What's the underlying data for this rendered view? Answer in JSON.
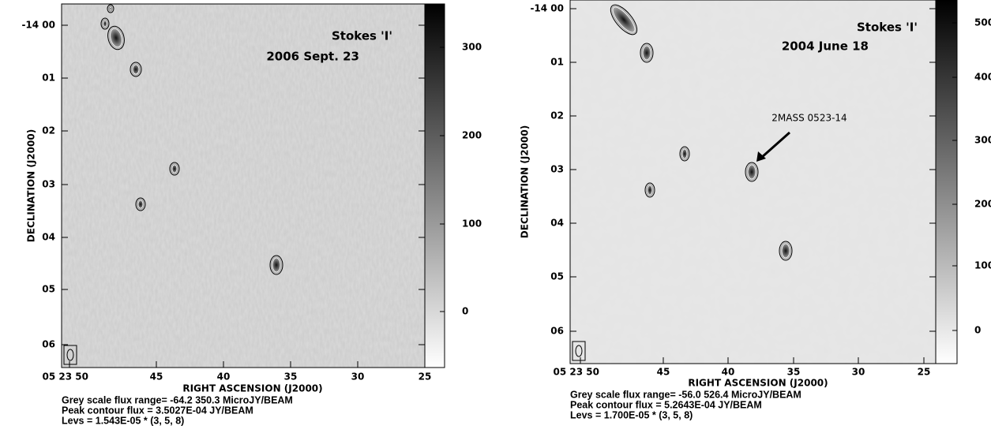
{
  "panels": [
    {
      "title": "Stokes 'I'",
      "date": "2006 Sept. 23",
      "y_axis_label": "DECLINATION (J2000)",
      "x_axis_label": "RIGHT ASCENSION (J2000)",
      "yticks": [
        "-14 00",
        "01",
        "02",
        "03",
        "04",
        "05",
        "06"
      ],
      "xticks": [
        "05 23 50",
        "45",
        "40",
        "35",
        "30",
        "25"
      ],
      "colorbar_ticks": [
        "300",
        "200",
        "100",
        "0"
      ],
      "caption": [
        "Grey scale flux range= -64.2 350.3 MicroJY/BEAM",
        "Peak contour flux =  3.5027E-04 JY/BEAM",
        "Levs = 1.543E-05 * (3, 5, 8)"
      ]
    },
    {
      "title": "Stokes 'I'",
      "date": "2004 June 18",
      "y_axis_label": "DECLINATION (J2000)",
      "x_axis_label": "RIGHT ASCENSION (J2000)",
      "yticks": [
        "-14 00",
        "01",
        "02",
        "03",
        "04",
        "05",
        "06"
      ],
      "xticks": [
        "05 23 50",
        "45",
        "40",
        "35",
        "30",
        "25"
      ],
      "colorbar_ticks": [
        "500",
        "400",
        "300",
        "200",
        "100",
        "0"
      ],
      "annotation": "2MASS 0523-14",
      "caption": [
        "Grey scale flux range= -56.0 526.4 MicroJY/BEAM",
        "Peak contour flux =  5.2643E-04 JY/BEAM",
        "Levs = 1.700E-05 * (3, 5, 8)"
      ]
    }
  ]
}
